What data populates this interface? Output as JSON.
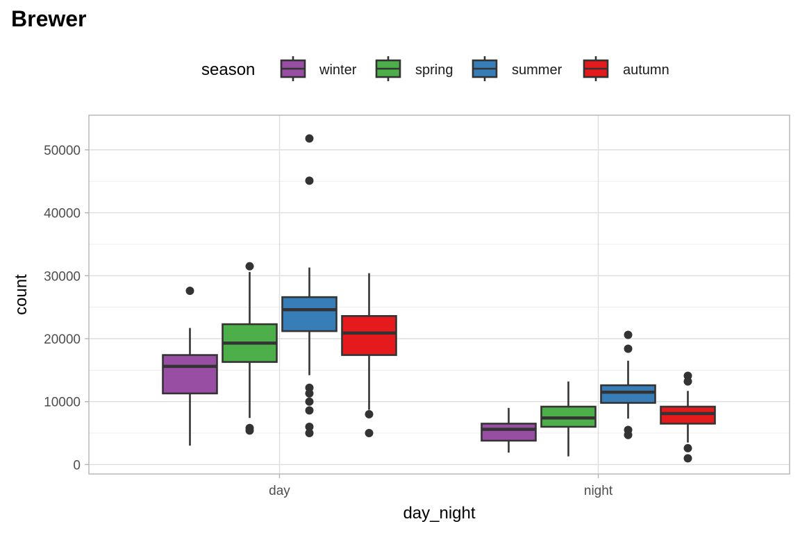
{
  "chart_data": {
    "type": "boxplot",
    "title": "Brewer",
    "xlabel": "day_night",
    "ylabel": "count",
    "categories": [
      "day",
      "night"
    ],
    "ylim": [
      -1500,
      55500
    ],
    "yticks": [
      0,
      10000,
      20000,
      30000,
      40000,
      50000
    ],
    "grid": true,
    "legend": {
      "title": "season",
      "position": "top"
    },
    "series": [
      {
        "name": "winter",
        "color": "#984ea3",
        "boxes": [
          {
            "category": "day",
            "whisker_low": 3000,
            "q1": 11300,
            "median": 15600,
            "q3": 17400,
            "whisker_high": 21700,
            "outliers": [
              27600
            ]
          },
          {
            "category": "night",
            "whisker_low": 1900,
            "q1": 3800,
            "median": 5600,
            "q3": 6500,
            "whisker_high": 9000,
            "outliers": []
          }
        ]
      },
      {
        "name": "spring",
        "color": "#4daf4a",
        "boxes": [
          {
            "category": "day",
            "whisker_low": 7400,
            "q1": 16300,
            "median": 19300,
            "q3": 22300,
            "whisker_high": 30600,
            "outliers": [
              31500,
              5800,
              5400
            ]
          },
          {
            "category": "night",
            "whisker_low": 1300,
            "q1": 6000,
            "median": 7400,
            "q3": 9200,
            "whisker_high": 13200,
            "outliers": []
          }
        ]
      },
      {
        "name": "summer",
        "color": "#377eb8",
        "boxes": [
          {
            "category": "day",
            "whisker_low": 14200,
            "q1": 21200,
            "median": 24600,
            "q3": 26600,
            "whisker_high": 31300,
            "outliers": [
              51800,
              45100,
              12200,
              11300,
              10000,
              8600,
              6000,
              5000
            ]
          },
          {
            "category": "night",
            "whisker_low": 7300,
            "q1": 9800,
            "median": 11500,
            "q3": 12600,
            "whisker_high": 16500,
            "outliers": [
              20600,
              18400,
              5500,
              4700
            ]
          }
        ]
      },
      {
        "name": "autumn",
        "color": "#e41a1c",
        "boxes": [
          {
            "category": "day",
            "whisker_low": 8700,
            "q1": 17400,
            "median": 20900,
            "q3": 23600,
            "whisker_high": 30400,
            "outliers": [
              8000,
              5000
            ]
          },
          {
            "category": "night",
            "whisker_low": 3500,
            "q1": 6500,
            "median": 8100,
            "q3": 9200,
            "whisker_high": 11700,
            "outliers": [
              14100,
              13200,
              2600,
              1000
            ]
          }
        ]
      }
    ]
  }
}
